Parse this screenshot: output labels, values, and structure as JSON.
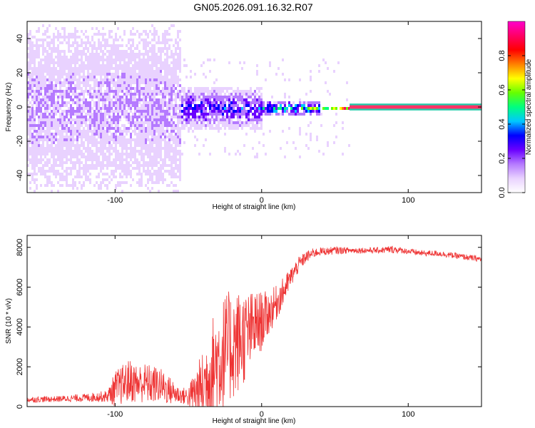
{
  "title": "GN05.2026.091.16.32.R07",
  "chart_data": [
    {
      "type": "heatmap",
      "xlabel": "Height of straight line (km)",
      "ylabel": "Frequency (Hz)",
      "xlim": [
        -160,
        150
      ],
      "ylim": [
        -50,
        50
      ],
      "xticks": [
        -100,
        0,
        100
      ],
      "yticks": [
        -40,
        -20,
        0,
        20,
        40
      ],
      "colorbar": {
        "label": "Normalized spectral amplitude",
        "range": [
          0,
          1
        ],
        "ticks": [
          0.0,
          0.2,
          0.4,
          0.6,
          0.8
        ],
        "tick_labels": [
          "0.0",
          "0.2",
          "0.4",
          "0.6",
          "0.8"
        ],
        "colors": [
          "#ffffff",
          "#e9d2ff",
          "#b57aff",
          "#6a00ff",
          "#0000ff",
          "#00c8ff",
          "#00ff7f",
          "#66ff00",
          "#ffff00",
          "#ff8000",
          "#ff0000",
          "#ff0066",
          "#ff00cc"
        ]
      },
      "regions": [
        {
          "x": [
            -160,
            -55
          ],
          "freq_halfwidth": 50,
          "amplitude": 0.15,
          "note": "broadband noise"
        },
        {
          "x": [
            -55,
            0
          ],
          "freq_halfwidth": 12,
          "amplitude": 0.3
        },
        {
          "x": [
            0,
            40
          ],
          "freq_halfwidth": 4,
          "amplitude": 0.5
        },
        {
          "x": [
            40,
            60
          ],
          "freq_halfwidth": 1.5,
          "amplitude": 0.7
        },
        {
          "x": [
            60,
            150
          ],
          "freq_halfwidth": 1,
          "amplitude": 1.0,
          "note": "steady tone at 0 Hz"
        }
      ]
    },
    {
      "type": "line",
      "xlabel": "Height of straight line (km)",
      "ylabel": "SNR (10 * v/v)",
      "xlim": [
        -160,
        150
      ],
      "ylim": [
        0,
        8600
      ],
      "xticks": [
        -100,
        0,
        100
      ],
      "yticks": [
        0,
        2000,
        4000,
        6000,
        8000
      ],
      "series": [
        {
          "color": "#ee3333",
          "x": [
            -160,
            -140,
            -120,
            -105,
            -100,
            -95,
            -90,
            -85,
            -80,
            -75,
            -70,
            -65,
            -60,
            -55,
            -50,
            -45,
            -40,
            -35,
            -30,
            -25,
            -20,
            -15,
            -10,
            -5,
            0,
            5,
            10,
            15,
            20,
            25,
            30,
            35,
            40,
            45,
            50,
            60,
            70,
            80,
            90,
            95,
            100,
            110,
            120,
            130,
            140,
            150
          ],
          "base": [
            350,
            380,
            450,
            520,
            900,
            1100,
            1300,
            1150,
            1200,
            1100,
            1100,
            900,
            700,
            550,
            500,
            700,
            1000,
            1700,
            2300,
            2700,
            3100,
            3300,
            3600,
            4000,
            4300,
            4700,
            5200,
            5800,
            6500,
            7100,
            7500,
            7700,
            7800,
            7800,
            7850,
            7850,
            7850,
            7850,
            7900,
            7850,
            7800,
            7700,
            7700,
            7600,
            7500,
            7400
          ],
          "noise": [
            150,
            150,
            200,
            300,
            900,
            1000,
            1100,
            1000,
            1000,
            1000,
            900,
            800,
            600,
            400,
            500,
            1300,
            1800,
            2600,
            2900,
            3000,
            2800,
            2600,
            2200,
            1800,
            1500,
            1100,
            900,
            700,
            500,
            400,
            300,
            250,
            200,
            200,
            200,
            150,
            150,
            150,
            200,
            150,
            150,
            150,
            150,
            150,
            150,
            150
          ]
        }
      ]
    }
  ]
}
